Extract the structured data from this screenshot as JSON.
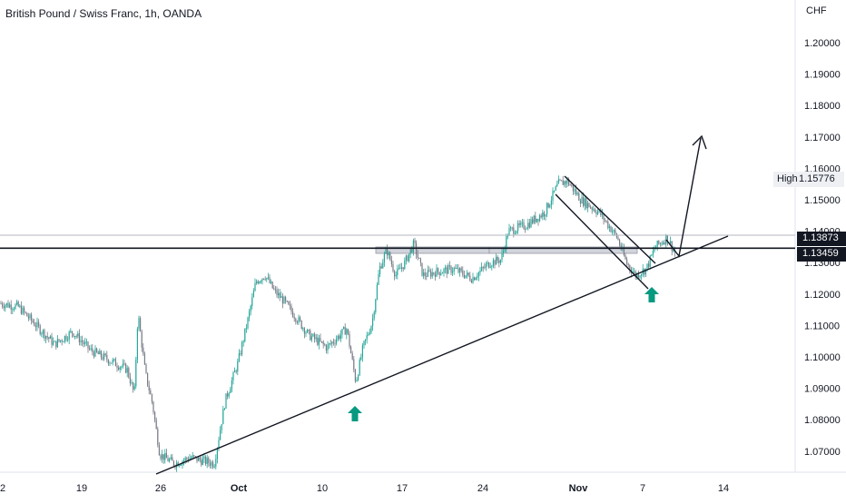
{
  "header": {
    "title": "British Pound / Swiss Franc, 1h, OANDA",
    "currency": "CHF"
  },
  "price_axis": {
    "ticks": [
      "1.20000",
      "1.19000",
      "1.18000",
      "1.17000",
      "1.16000",
      "1.15000",
      "1.14000",
      "1.13000",
      "1.12000",
      "1.11000",
      "1.10000",
      "1.09000",
      "1.08000",
      "1.07000"
    ],
    "high_label": "High",
    "high_value": "1.15776",
    "tag_upper": "1.13873",
    "tag_lower": "1.13459"
  },
  "time_axis": {
    "ticks": [
      "2",
      "19",
      "26",
      "Oct",
      "10",
      "17",
      "24",
      "Nov",
      "7",
      "14"
    ]
  },
  "colors": {
    "up": "#26a69a",
    "down": "#787b86",
    "lines": "#131722",
    "arrow_marker": "#089981",
    "zone": "#d1d4dc"
  },
  "chart_data": {
    "type": "candlestick",
    "title": "British Pound / Swiss Franc, 1h, OANDA",
    "unit": "CHF",
    "x_ticks": [
      "2",
      "19",
      "26",
      "Oct",
      "10",
      "17",
      "24",
      "Nov",
      "7",
      "14"
    ],
    "y_ticks": [
      1.2,
      1.19,
      1.18,
      1.17,
      1.16,
      1.15,
      1.14,
      1.13,
      1.12,
      1.11,
      1.1,
      1.09,
      1.08,
      1.07
    ],
    "price_path": [
      {
        "x": "2",
        "close": 1.117
      },
      {
        "x": "19",
        "close": 1.103
      },
      {
        "x": "26",
        "close": 1.069
      },
      {
        "x": "Oct",
        "close": 1.108
      },
      {
        "x": "10",
        "close": 1.105
      },
      {
        "x": "17",
        "close": 1.13
      },
      {
        "x": "24",
        "close": 1.127
      },
      {
        "x": "Nov",
        "close": 1.155
      },
      {
        "x": "7",
        "close": 1.13
      }
    ],
    "period_high": 1.15776,
    "horizontal_levels": [
      1.13873,
      1.13459
    ],
    "annotations": [
      "ascending trendline",
      "descending channel",
      "two up-arrow markers",
      "projection arrow toward 1.171"
    ],
    "grid": false
  }
}
